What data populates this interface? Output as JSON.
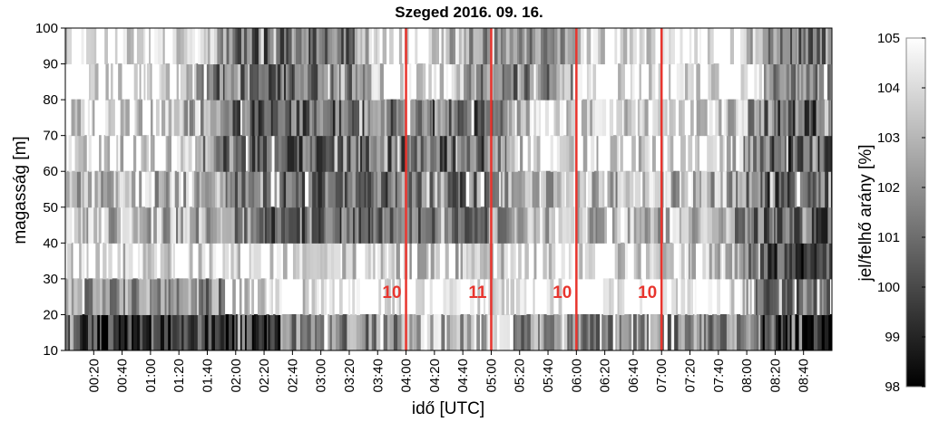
{
  "chart_data": {
    "type": "heatmap",
    "title": "Szeged 2016. 09. 16.",
    "xlabel": "idő [UTC]",
    "ylabel": "magasság [m]",
    "colorbar_label": "jel/felhő arány [%]",
    "colormap": "gray (black = 98, white = 105)",
    "xlim": [
      "00:00",
      "09:00"
    ],
    "ylim": [
      10,
      100
    ],
    "x_ticks": [
      "00:20",
      "00:40",
      "01:00",
      "01:20",
      "01:40",
      "02:00",
      "02:20",
      "02:40",
      "03:00",
      "03:20",
      "03:40",
      "04:00",
      "04:20",
      "04:40",
      "05:00",
      "05:20",
      "05:40",
      "06:00",
      "06:20",
      "06:40",
      "07:00",
      "07:20",
      "07:40",
      "08:00",
      "08:20",
      "08:40"
    ],
    "y_ticks": [
      10,
      20,
      30,
      40,
      50,
      60,
      70,
      80,
      90,
      100
    ],
    "colorbar_ticks": [
      98,
      99,
      100,
      101,
      102,
      103,
      104,
      105
    ],
    "colorbar_range": [
      98,
      105
    ],
    "height_bins": [
      10,
      20,
      30,
      40,
      50,
      60,
      70,
      80,
      90,
      100
    ],
    "vertical_lines": [
      {
        "time": "04:00",
        "label": "10",
        "color": "#e8352e"
      },
      {
        "time": "05:00",
        "label": "11",
        "color": "#e8352e"
      },
      {
        "time": "06:00",
        "label": "10",
        "color": "#e8352e"
      },
      {
        "time": "07:00",
        "label": "10",
        "color": "#e8352e"
      }
    ],
    "grid": false
  }
}
